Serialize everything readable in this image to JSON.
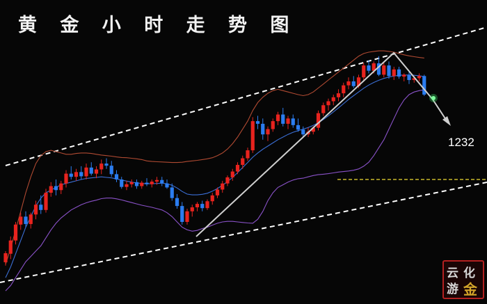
{
  "title": "黄 金 小 时 走 势 图",
  "price_label": "1232",
  "logo": {
    "chars": [
      "云",
      "化",
      "游",
      "金"
    ]
  },
  "colors": {
    "up": "#e8231e",
    "down": "#2b7df0",
    "middle_band": "#3b6fd6",
    "upper_band": "#b04a32",
    "lower_band": "#8a52c9",
    "channel": "#ffffff",
    "level": "#c8b82a",
    "arrow": "#cfcfcf"
  },
  "chart_data": {
    "type": "candlestick",
    "y_unit": "USD/oz",
    "marked_level": 1232,
    "candles": [
      [
        1200.8,
        1205.0,
        1199.5,
        1204.2
      ],
      [
        1204.0,
        1210.5,
        1202.0,
        1209.0
      ],
      [
        1209.0,
        1216.0,
        1207.5,
        1215.0
      ],
      [
        1215.0,
        1219.5,
        1213.0,
        1218.0
      ],
      [
        1218.0,
        1220.0,
        1214.0,
        1215.2
      ],
      [
        1215.2,
        1219.5,
        1213.5,
        1218.8
      ],
      [
        1218.8,
        1224.0,
        1217.0,
        1222.5
      ],
      [
        1222.5,
        1226.0,
        1219.0,
        1220.5
      ],
      [
        1220.5,
        1228.5,
        1219.5,
        1227.0
      ],
      [
        1227.0,
        1231.0,
        1225.5,
        1229.5
      ],
      [
        1229.5,
        1232.0,
        1226.0,
        1228.0
      ],
      [
        1228.0,
        1231.5,
        1226.5,
        1230.5
      ],
      [
        1230.5,
        1235.5,
        1229.0,
        1234.2
      ],
      [
        1234.2,
        1237.0,
        1232.0,
        1233.0
      ],
      [
        1233.0,
        1236.0,
        1231.5,
        1234.8
      ],
      [
        1234.8,
        1237.0,
        1232.0,
        1233.2
      ],
      [
        1233.2,
        1238.0,
        1232.0,
        1236.5
      ],
      [
        1236.5,
        1238.5,
        1233.5,
        1234.2
      ],
      [
        1234.2,
        1237.0,
        1232.5,
        1235.8
      ],
      [
        1235.8,
        1239.5,
        1234.0,
        1238.0
      ],
      [
        1238.0,
        1240.0,
        1236.0,
        1237.2
      ],
      [
        1237.2,
        1239.0,
        1233.0,
        1234.0
      ],
      [
        1234.0,
        1235.5,
        1231.0,
        1232.0
      ],
      [
        1232.0,
        1233.0,
        1228.5,
        1229.2
      ],
      [
        1229.2,
        1231.5,
        1228.0,
        1230.2
      ],
      [
        1230.2,
        1232.0,
        1229.0,
        1231.0
      ],
      [
        1231.0,
        1232.0,
        1228.5,
        1229.5
      ],
      [
        1229.5,
        1231.5,
        1228.5,
        1230.8
      ],
      [
        1230.8,
        1232.5,
        1229.5,
        1230.2
      ],
      [
        1230.2,
        1232.0,
        1229.0,
        1231.2
      ],
      [
        1231.2,
        1233.0,
        1230.0,
        1231.8
      ],
      [
        1231.8,
        1233.0,
        1229.5,
        1230.5
      ],
      [
        1230.5,
        1232.0,
        1228.5,
        1229.0
      ],
      [
        1229.0,
        1230.5,
        1224.0,
        1225.0
      ],
      [
        1225.0,
        1226.5,
        1221.0,
        1222.0
      ],
      [
        1222.0,
        1223.5,
        1215.0,
        1216.0
      ],
      [
        1216.0,
        1221.0,
        1215.0,
        1220.0
      ],
      [
        1220.0,
        1222.5,
        1218.0,
        1221.5
      ],
      [
        1221.5,
        1223.5,
        1220.0,
        1222.8
      ],
      [
        1222.8,
        1224.0,
        1220.0,
        1221.2
      ],
      [
        1221.2,
        1224.5,
        1220.5,
        1223.8
      ],
      [
        1223.8,
        1227.0,
        1222.5,
        1226.0
      ],
      [
        1226.0,
        1229.0,
        1225.0,
        1228.2
      ],
      [
        1228.2,
        1231.5,
        1227.0,
        1230.5
      ],
      [
        1230.5,
        1233.5,
        1229.5,
        1232.8
      ],
      [
        1232.8,
        1236.0,
        1231.5,
        1235.0
      ],
      [
        1235.0,
        1238.5,
        1234.0,
        1237.5
      ],
      [
        1237.5,
        1241.0,
        1236.0,
        1240.0
      ],
      [
        1240.0,
        1244.0,
        1239.0,
        1243.0
      ],
      [
        1243.0,
        1255.5,
        1242.0,
        1254.0
      ],
      [
        1254.0,
        1256.0,
        1251.0,
        1253.0
      ],
      [
        1253.0,
        1255.0,
        1247.0,
        1249.0
      ],
      [
        1249.0,
        1252.0,
        1246.5,
        1251.0
      ],
      [
        1251.0,
        1255.0,
        1250.0,
        1254.0
      ],
      [
        1254.0,
        1257.5,
        1252.5,
        1256.5
      ],
      [
        1256.5,
        1259.0,
        1252.0,
        1253.0
      ],
      [
        1253.0,
        1256.0,
        1251.0,
        1255.0
      ],
      [
        1255.0,
        1256.5,
        1251.5,
        1252.5
      ],
      [
        1252.5,
        1255.0,
        1250.0,
        1250.8
      ],
      [
        1250.8,
        1252.0,
        1248.0,
        1249.0
      ],
      [
        1249.0,
        1251.5,
        1248.0,
        1250.0
      ],
      [
        1250.0,
        1252.0,
        1249.0,
        1251.5
      ],
      [
        1251.5,
        1258.0,
        1250.5,
        1257.0
      ],
      [
        1257.0,
        1261.0,
        1256.0,
        1260.0
      ],
      [
        1260.0,
        1262.5,
        1258.0,
        1261.5
      ],
      [
        1261.5,
        1264.0,
        1260.0,
        1263.0
      ],
      [
        1263.0,
        1266.0,
        1261.5,
        1264.5
      ],
      [
        1264.5,
        1268.5,
        1263.0,
        1267.5
      ],
      [
        1267.5,
        1270.5,
        1266.0,
        1269.0
      ],
      [
        1269.0,
        1271.0,
        1266.5,
        1267.2
      ],
      [
        1267.2,
        1271.5,
        1266.5,
        1270.5
      ],
      [
        1270.5,
        1276.0,
        1269.5,
        1275.0
      ],
      [
        1275.0,
        1277.0,
        1272.0,
        1273.0
      ],
      [
        1273.0,
        1276.5,
        1272.0,
        1275.8
      ],
      [
        1275.8,
        1278.5,
        1271.0,
        1271.5
      ],
      [
        1271.5,
        1276.0,
        1270.5,
        1275.0
      ],
      [
        1275.0,
        1276.5,
        1270.0,
        1271.0
      ],
      [
        1271.0,
        1274.5,
        1269.5,
        1273.5
      ],
      [
        1273.5,
        1274.5,
        1270.0,
        1270.8
      ],
      [
        1270.8,
        1272.0,
        1269.0,
        1271.5
      ],
      [
        1271.5,
        1272.5,
        1268.0,
        1269.5
      ],
      [
        1269.5,
        1271.0,
        1268.5,
        1270.2
      ],
      [
        1270.2,
        1272.0,
        1269.0,
        1271.0
      ],
      [
        1271.0,
        1271.5,
        1263.5,
        1264.0
      ]
    ],
    "series": {
      "middle_band": [
        1195,
        1199,
        1204,
        1209,
        1214,
        1218,
        1222,
        1225,
        1227,
        1228,
        1229,
        1230,
        1230.5,
        1231,
        1231.5,
        1232,
        1232.4,
        1232.6,
        1232.8,
        1233,
        1232.8,
        1232.6,
        1232.2,
        1231.8,
        1231.4,
        1231,
        1230.7,
        1230.5,
        1230.4,
        1230.4,
        1230.5,
        1230.6,
        1230.4,
        1229.8,
        1228.8,
        1227.5,
        1226.5,
        1226.2,
        1226.2,
        1226.4,
        1226.8,
        1227.6,
        1228.6,
        1229.8,
        1231.2,
        1232.8,
        1234.6,
        1236.5,
        1238.4,
        1240.4,
        1242,
        1243.4,
        1244.6,
        1245.8,
        1247,
        1248,
        1249,
        1249.8,
        1250.4,
        1251,
        1251.6,
        1252.4,
        1253.4,
        1254.6,
        1256,
        1257.5,
        1259,
        1260.6,
        1262.2,
        1263.6,
        1265,
        1266.4,
        1267.6,
        1268.6,
        1269.4,
        1270.1,
        1270.6,
        1271,
        1271.3,
        1271.4,
        1271.4,
        1271.3,
        1271.1,
        1270.8
      ],
      "upper_band": [
        1200,
        1206,
        1213,
        1220,
        1227,
        1233,
        1238,
        1241,
        1242.5,
        1243,
        1242.5,
        1242,
        1241.5,
        1241.5,
        1241.8,
        1242,
        1242,
        1241.8,
        1241.5,
        1241.2,
        1241,
        1240.8,
        1240.5,
        1240.3,
        1240.2,
        1240,
        1239.8,
        1239.5,
        1239,
        1238.8,
        1238.7,
        1238.6,
        1238.5,
        1238.4,
        1238.4,
        1238.5,
        1238.8,
        1239,
        1239.2,
        1239.5,
        1239.8,
        1240.2,
        1241,
        1242,
        1243.5,
        1245.5,
        1248,
        1251,
        1254,
        1258,
        1261,
        1263,
        1264.5,
        1265.5,
        1266,
        1265.5,
        1265,
        1264.5,
        1264,
        1263.6,
        1264,
        1265,
        1266.5,
        1268,
        1269.5,
        1271,
        1272.5,
        1274,
        1275.5,
        1277,
        1278.5,
        1279.5,
        1280,
        1280.3,
        1280.5,
        1280.5,
        1280.3,
        1280,
        1279.5,
        1279,
        1278.6,
        1278.3,
        1278,
        1277.8
      ],
      "lower_band": [
        1190,
        1192,
        1195,
        1198,
        1201,
        1203,
        1205,
        1207,
        1210,
        1213,
        1215.5,
        1217.5,
        1219,
        1220.5,
        1221.5,
        1222.5,
        1223.2,
        1223.8,
        1224.2,
        1224.8,
        1225,
        1225,
        1224.7,
        1224.3,
        1223.8,
        1223.3,
        1222.8,
        1222.3,
        1221.9,
        1221.5,
        1221,
        1220.5,
        1219.5,
        1218,
        1216,
        1214,
        1213,
        1212.5,
        1212.8,
        1213.5,
        1214,
        1214.8,
        1215.5,
        1216,
        1216.2,
        1216.2,
        1216,
        1215.8,
        1215.6,
        1215.5,
        1217,
        1220,
        1224,
        1227,
        1229,
        1230,
        1231,
        1231.8,
        1232.3,
        1232.5,
        1233,
        1233.5,
        1233.8,
        1234,
        1234.2,
        1234.5,
        1234.8,
        1235,
        1235.2,
        1235.5,
        1236,
        1237,
        1238.5,
        1241,
        1244,
        1247,
        1251,
        1255,
        1259,
        1262,
        1264,
        1265,
        1265.5,
        1265.8
      ]
    }
  }
}
